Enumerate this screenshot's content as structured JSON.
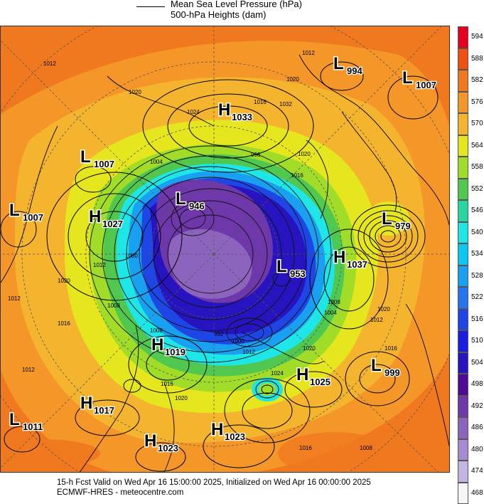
{
  "legend": {
    "line1": "Mean Sea Level Pressure (hPa)",
    "line2": "500-hPa Heights (dam)"
  },
  "map": {
    "pressure_systems": [
      {
        "type": "L",
        "value": "994"
      },
      {
        "type": "L",
        "value": "1007"
      },
      {
        "type": "H",
        "value": "1033"
      },
      {
        "type": "L",
        "value": "1007"
      },
      {
        "type": "L",
        "value": "1007"
      },
      {
        "type": "L",
        "value": "946"
      },
      {
        "type": "H",
        "value": "1027"
      },
      {
        "type": "L",
        "value": "979"
      },
      {
        "type": "L",
        "value": "953"
      },
      {
        "type": "H",
        "value": "1037"
      },
      {
        "type": "H",
        "value": "1019"
      },
      {
        "type": "H",
        "value": "1025"
      },
      {
        "type": "L",
        "value": "999"
      },
      {
        "type": "H",
        "value": "1017"
      },
      {
        "type": "L",
        "value": "1011"
      },
      {
        "type": "H",
        "value": "1023"
      },
      {
        "type": "H",
        "value": "1023"
      }
    ],
    "isobar_labels": [
      "1012",
      "1020",
      "1024",
      "1016",
      "1012",
      "1020",
      "1032",
      "1020",
      "1016",
      "1004",
      "996",
      "1000",
      "1012",
      "1008",
      "1020",
      "1012",
      "1016",
      "1020",
      "1008",
      "1012",
      "1016",
      "1020",
      "1012",
      "1000",
      "992",
      "1008",
      "1004",
      "1024",
      "1020",
      "1016",
      "1012",
      "1016",
      "1008"
    ]
  },
  "colorbar": {
    "levels": [
      "594",
      "588",
      "582",
      "576",
      "570",
      "564",
      "558",
      "552",
      "546",
      "540",
      "534",
      "528",
      "522",
      "516",
      "510",
      "504",
      "498",
      "492",
      "486",
      "480",
      "474",
      "468"
    ],
    "colors": [
      "#e4001e",
      "#f05010",
      "#f0781e",
      "#f59628",
      "#f5b42d",
      "#e6e61e",
      "#a0dc28",
      "#50c850",
      "#28d7a0",
      "#1ee6e6",
      "#0ac8f0",
      "#19a0f0",
      "#2873f0",
      "#1e46e6",
      "#1a1ee1",
      "#2814be",
      "#500a96",
      "#6e37aa",
      "#8c64be",
      "#a58cd2",
      "#c3b4e1",
      "#f5f5f5"
    ]
  },
  "footer": {
    "line1": "15-h Fcst Valid on Wed Apr 16 15:00:00 2025, Initialized on Wed Apr 16 00:00:00 2025",
    "line2": "ECMWF-HRES  - meteocentre.com"
  }
}
